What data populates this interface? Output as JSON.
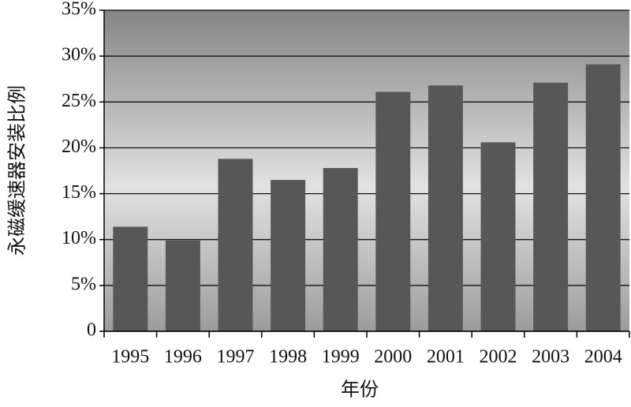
{
  "chart_data": {
    "type": "bar",
    "x_label": "年份",
    "y_label": "永磁缓速器安装比例",
    "categories": [
      "1995",
      "1996",
      "1997",
      "1998",
      "1999",
      "2000",
      "2001",
      "2002",
      "2003",
      "2004"
    ],
    "values": [
      11.4,
      9.9,
      18.8,
      16.5,
      17.8,
      26.1,
      26.8,
      20.6,
      27.1,
      29.1
    ],
    "color": "#575757",
    "ylim": [
      0,
      35
    ],
    "yticks": [
      0,
      {
        "value": 5,
        "label": "5%"
      },
      {
        "value": 10,
        "label": "10%"
      },
      {
        "value": 15,
        "label": "15%"
      },
      {
        "value": 20,
        "label": "20%"
      },
      {
        "value": 25,
        "label": "25%"
      },
      {
        "value": 30,
        "label": "30%"
      },
      {
        "value": 35,
        "label": "35%"
      }
    ],
    "grid": true
  }
}
